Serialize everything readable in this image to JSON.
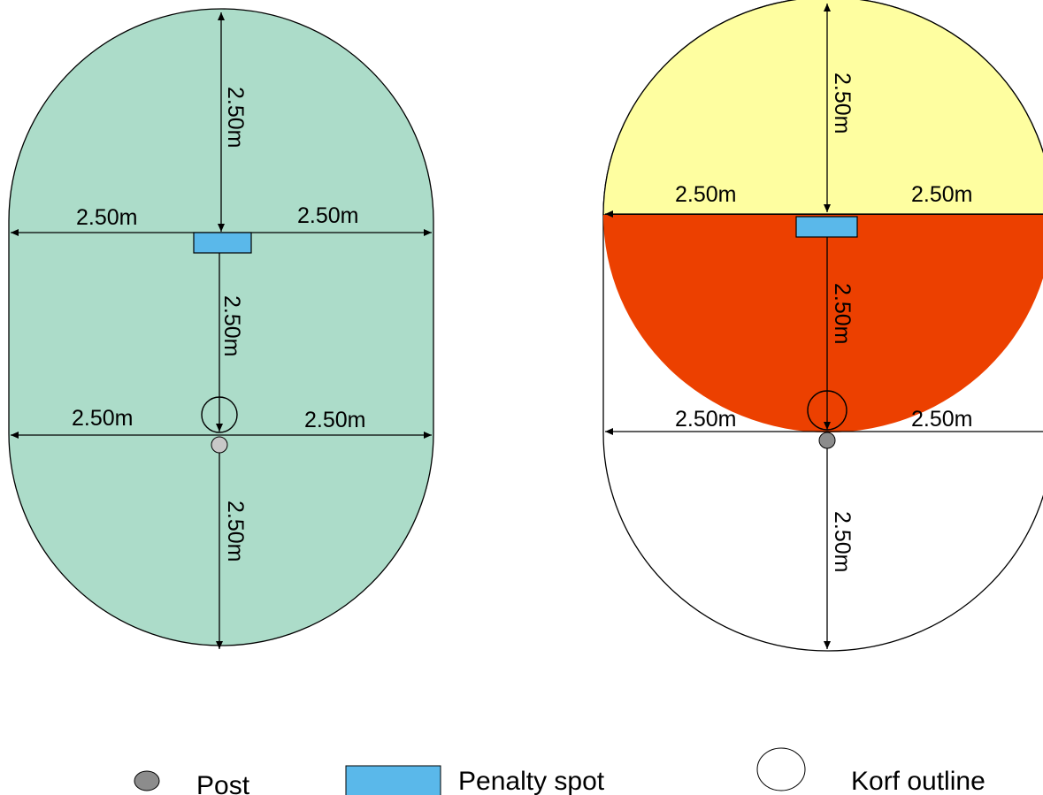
{
  "diagram_a": {
    "dim_top": "2.50m",
    "dim_upper_left": "2.50m",
    "dim_upper_right": "2.50m",
    "dim_middle": "2.50m",
    "dim_lower_left": "2.50m",
    "dim_lower_right": "2.50m",
    "dim_bottom": "2.50m"
  },
  "diagram_b": {
    "dim_top": "2.50m",
    "dim_upper_left": "2.50m",
    "dim_upper_right": "2.50m",
    "dim_middle": "2.50m",
    "dim_lower_left": "2.50m",
    "dim_lower_right": "2.50m",
    "dim_bottom": "2.50m"
  },
  "legend": {
    "post": "Post",
    "penalty_spot": "Penalty spot",
    "korf_outline": "Korf outline"
  },
  "colors": {
    "zone_a": "#acdcc9",
    "zone_b_upper": "#fefea0",
    "zone_b_lower": "#ec4000",
    "penalty_spot": "#5ab8ea",
    "post_a": "#c8c8c8",
    "post_b": "#8c8c8c",
    "legend_post": "#8c8c8c"
  }
}
